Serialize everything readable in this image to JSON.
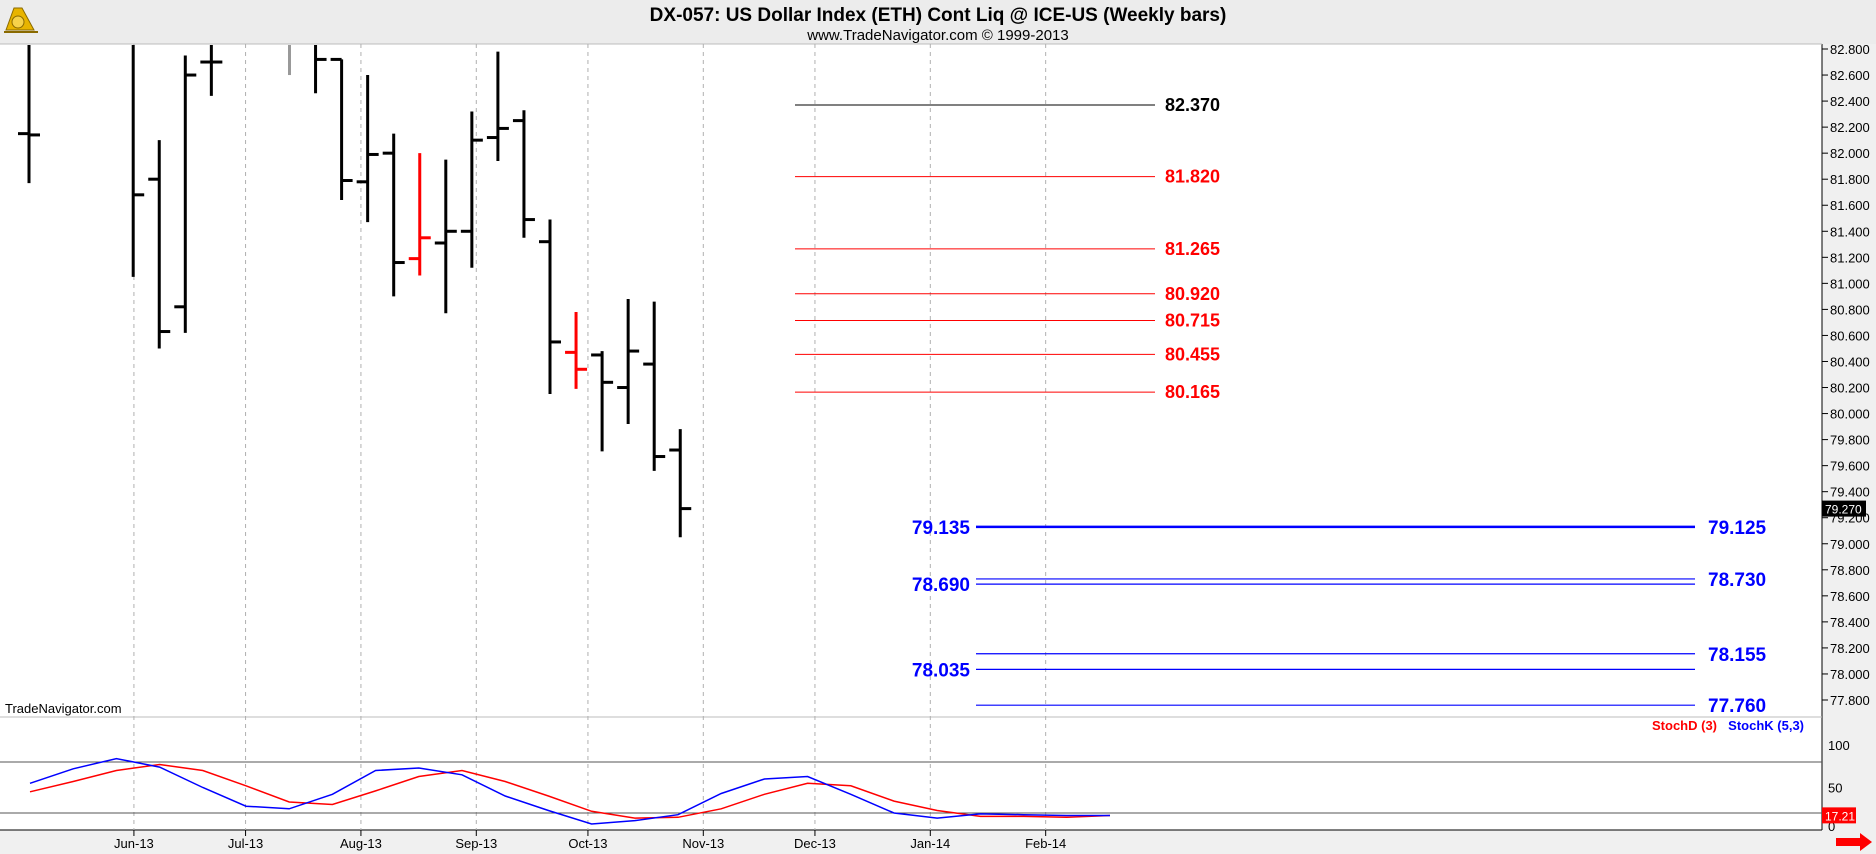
{
  "header": {
    "title": "DX-057:  US Dollar Index (ETH) Cont Liq @ ICE-US  (Weekly bars)",
    "subtitle": "www.TradeNavigator.com © 1999-2013",
    "watermark": "TradeNavigator.com",
    "logo_icon": "sextant-logo-icon"
  },
  "colors": {
    "bar": "#000000",
    "bar_highlight": "#ff0000",
    "resistance": "#ff0000",
    "support": "#0000ff",
    "stoch_d": "#ff0000",
    "stoch_k": "#0000ff",
    "current_price_bg": "#000000",
    "current_stoch_bg": "#ff0000",
    "scroll_arrow": "#ff0000"
  },
  "chart_data": [
    {
      "type": "ohlc",
      "title": "DX-057:  US Dollar Index (ETH) Cont Liq @ ICE-US  (Weekly bars)",
      "x_labels": [
        "Jun-13",
        "Jul-13",
        "Aug-13",
        "Sep-13",
        "Oct-13",
        "Nov-13",
        "Dec-13",
        "Jan-14",
        "Feb-14"
      ],
      "y_ticks": [
        "82.800",
        "82.600",
        "82.400",
        "82.200",
        "82.000",
        "81.800",
        "81.600",
        "81.400",
        "81.200",
        "81.000",
        "80.800",
        "80.600",
        "80.400",
        "80.200",
        "80.000",
        "79.800",
        "79.600",
        "79.400",
        "79.200",
        "79.000",
        "78.800",
        "78.600",
        "78.400",
        "78.200",
        "78.000",
        "77.800"
      ],
      "ylim": [
        77.6,
        82.85
      ],
      "grid": "vertical-dashed",
      "current_price": "79.270",
      "bars": [
        {
          "date": "2013-05-03",
          "open": 82.15,
          "high": 82.85,
          "low": 81.77,
          "close": 82.14
        },
        {
          "date": "2013-05-31",
          "open": 82.85,
          "high": 82.85,
          "low": 81.05,
          "close": 81.68
        },
        {
          "date": "2013-06-07",
          "open": 81.8,
          "high": 82.1,
          "low": 80.5,
          "close": 80.63
        },
        {
          "date": "2013-06-14",
          "open": 80.82,
          "high": 82.75,
          "low": 80.62,
          "close": 82.6
        },
        {
          "date": "2013-06-21",
          "open": 82.7,
          "high": 82.85,
          "low": 82.44,
          "close": 82.7
        },
        {
          "date": "2013-07-12",
          "open": 82.85,
          "high": 82.85,
          "low": 82.6,
          "close": 82.85,
          "highlight": "gray"
        },
        {
          "date": "2013-07-19",
          "open": 82.85,
          "high": 82.85,
          "low": 82.46,
          "close": 82.72
        },
        {
          "date": "2013-07-26",
          "open": 82.72,
          "high": 82.72,
          "low": 81.64,
          "close": 81.79
        },
        {
          "date": "2013-08-02",
          "open": 81.78,
          "high": 82.6,
          "low": 81.47,
          "close": 81.99
        },
        {
          "date": "2013-08-09",
          "open": 82.0,
          "high": 82.15,
          "low": 80.9,
          "close": 81.16
        },
        {
          "date": "2013-08-16",
          "open": 81.19,
          "high": 82.0,
          "low": 81.06,
          "close": 81.35,
          "highlight": "red"
        },
        {
          "date": "2013-08-23",
          "open": 81.31,
          "high": 81.95,
          "low": 80.77,
          "close": 81.4
        },
        {
          "date": "2013-08-30",
          "open": 81.4,
          "high": 82.32,
          "low": 81.12,
          "close": 82.1
        },
        {
          "date": "2013-09-06",
          "open": 82.12,
          "high": 82.78,
          "low": 81.94,
          "close": 82.19
        },
        {
          "date": "2013-09-13",
          "open": 82.25,
          "high": 82.33,
          "low": 81.35,
          "close": 81.49
        },
        {
          "date": "2013-09-20",
          "open": 81.32,
          "high": 81.49,
          "low": 80.15,
          "close": 80.55
        },
        {
          "date": "2013-09-27",
          "open": 80.47,
          "high": 80.78,
          "low": 80.19,
          "close": 80.34,
          "highlight": "red"
        },
        {
          "date": "2013-10-04",
          "open": 80.45,
          "high": 80.48,
          "low": 79.71,
          "close": 80.24
        },
        {
          "date": "2013-10-11",
          "open": 80.2,
          "high": 80.88,
          "low": 79.92,
          "close": 80.48
        },
        {
          "date": "2013-10-18",
          "open": 80.38,
          "high": 80.86,
          "low": 79.56,
          "close": 79.67
        },
        {
          "date": "2013-10-25",
          "open": 79.72,
          "high": 79.88,
          "low": 79.05,
          "close": 79.27
        }
      ],
      "resistance_levels": [
        {
          "value": 82.37,
          "label": "82.370",
          "color": "black"
        },
        {
          "value": 81.82,
          "label": "81.820"
        },
        {
          "value": 81.265,
          "label": "81.265"
        },
        {
          "value": 80.92,
          "label": "80.920"
        },
        {
          "value": 80.715,
          "label": "80.715"
        },
        {
          "value": 80.455,
          "label": "80.455"
        },
        {
          "value": 80.165,
          "label": "80.165"
        }
      ],
      "support_levels": [
        {
          "value": 79.13,
          "left_label": "79.135",
          "right_label": "79.125",
          "thick": true
        },
        {
          "value": 78.73,
          "left_label": "",
          "right_label": "78.730"
        },
        {
          "value": 78.69,
          "left_label": "78.690",
          "right_label": ""
        },
        {
          "value": 78.155,
          "left_label": "",
          "right_label": "78.155"
        },
        {
          "value": 78.035,
          "left_label": "78.035",
          "right_label": ""
        },
        {
          "value": 77.76,
          "left_label": "",
          "right_label": "77.760"
        }
      ]
    },
    {
      "type": "line",
      "ylim": [
        0,
        100
      ],
      "y_ticks": [
        "100",
        "50",
        "0"
      ],
      "reference_lines": [
        80,
        20
      ],
      "current_value": "17.21",
      "series": [
        {
          "name": "StochD (3)",
          "color": "red",
          "values": [
            45,
            57,
            70,
            77,
            70,
            52,
            33,
            30,
            46,
            63,
            70,
            57,
            40,
            22,
            14,
            15,
            25,
            42,
            55,
            52,
            34,
            23,
            16,
            16,
            15,
            17
          ]
        },
        {
          "name": "StochK (5,3)",
          "color": "blue",
          "values": [
            55,
            72,
            84,
            74,
            50,
            28,
            25,
            42,
            70,
            73,
            65,
            40,
            23,
            7,
            11,
            18,
            43,
            60,
            63,
            42,
            20,
            14,
            19,
            18,
            17,
            17
          ]
        }
      ]
    }
  ]
}
